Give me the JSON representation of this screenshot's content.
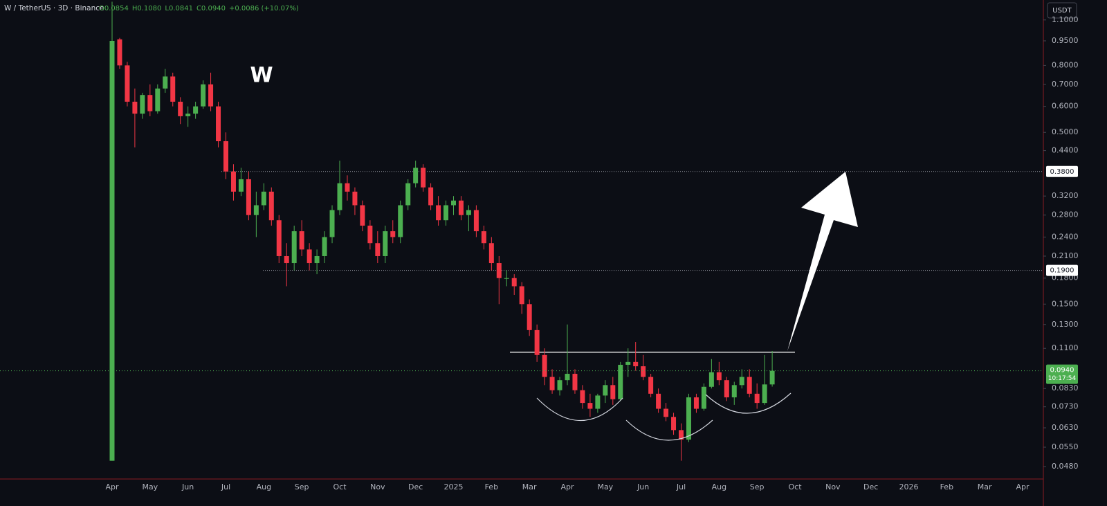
{
  "chart_data": {
    "type": "candlestick",
    "title": "W / TetherUS · 3D · Binance",
    "ohlc_header": [
      "O0.0854",
      "H0.1080",
      "L0.0841",
      "C0.0940",
      "+0.0086 (+10.07%)"
    ],
    "currency": "USDT",
    "annotation": "W",
    "up_color": "#4caf50",
    "down_color": "#f23645",
    "log_scale": true,
    "grid": false,
    "ylim": [
      0.044,
      1.265
    ],
    "yticks": [
      {
        "value": 1.1,
        "label": "1.1000"
      },
      {
        "value": 0.95,
        "label": "0.9500"
      },
      {
        "value": 0.8,
        "label": "0.8000"
      },
      {
        "value": 0.7,
        "label": "0.7000"
      },
      {
        "value": 0.6,
        "label": "0.6000"
      },
      {
        "value": 0.5,
        "label": "0.5000"
      },
      {
        "value": 0.44,
        "label": "0.4400"
      },
      {
        "value": 0.32,
        "label": "0.3200"
      },
      {
        "value": 0.28,
        "label": "0.2800"
      },
      {
        "value": 0.24,
        "label": "0.2400"
      },
      {
        "value": 0.21,
        "label": "0.2100"
      },
      {
        "value": 0.18,
        "label": "0.1800"
      },
      {
        "value": 0.15,
        "label": "0.1500"
      },
      {
        "value": 0.13,
        "label": "0.1300"
      },
      {
        "value": 0.11,
        "label": "0.1100"
      },
      {
        "value": 0.083,
        "label": "0.0830"
      },
      {
        "value": 0.073,
        "label": "0.0730"
      },
      {
        "value": 0.063,
        "label": "0.0630"
      },
      {
        "value": 0.055,
        "label": "0.0550"
      },
      {
        "value": 0.048,
        "label": "0.0480"
      }
    ],
    "levels": [
      {
        "value": 0.38,
        "label": "0.3800"
      },
      {
        "value": 0.19,
        "label": "0.1900"
      }
    ],
    "neckline": 0.107,
    "last_price": {
      "value": 0.094,
      "label": "0.0940"
    },
    "countdown": "10:17:54",
    "categories": [
      "Apr",
      null,
      null,
      null,
      null,
      "May",
      null,
      null,
      null,
      null,
      "Jun",
      null,
      null,
      null,
      null,
      "Jul",
      null,
      null,
      null,
      null,
      "Aug",
      null,
      null,
      null,
      null,
      "Sep",
      null,
      null,
      null,
      null,
      "Oct",
      null,
      null,
      null,
      null,
      "Nov",
      null,
      null,
      null,
      null,
      "Dec",
      null,
      null,
      null,
      null,
      "2025",
      null,
      null,
      null,
      null,
      "Feb",
      null,
      null,
      null,
      null,
      "Mar",
      null,
      null,
      null,
      null,
      "Apr",
      null,
      null,
      null,
      null,
      "May",
      null,
      null,
      null,
      null,
      "Jun",
      null,
      null,
      null,
      null,
      "Jul",
      null,
      null,
      null,
      null,
      "Aug",
      null,
      null,
      null,
      null,
      "Sep",
      null,
      null,
      null,
      null,
      "Oct",
      null,
      null,
      null,
      null,
      "Nov",
      null,
      null,
      null,
      null,
      "Dec",
      null,
      null,
      null,
      null,
      "2026",
      null,
      null,
      null,
      null,
      "Feb",
      null,
      null,
      null,
      null,
      "Mar",
      null,
      null,
      null,
      null,
      "Apr"
    ],
    "open": [
      0.05,
      0.96,
      0.8,
      0.62,
      0.57,
      0.65,
      0.58,
      0.68,
      0.74,
      0.62,
      0.56,
      0.57,
      0.6,
      0.7,
      0.6,
      0.47,
      0.38,
      0.33,
      0.36,
      0.28,
      0.3,
      0.33,
      0.27,
      0.21,
      0.2,
      0.25,
      0.22,
      0.2,
      0.21,
      0.24,
      0.29,
      0.35,
      0.33,
      0.3,
      0.26,
      0.23,
      0.21,
      0.25,
      0.24,
      0.3,
      0.35,
      0.39,
      0.34,
      0.3,
      0.27,
      0.3,
      0.31,
      0.28,
      0.29,
      0.25,
      0.23,
      0.2,
      0.18,
      0.18,
      0.17,
      0.15,
      0.125,
      0.105,
      0.09,
      0.082,
      0.088,
      0.092,
      0.082,
      0.075,
      0.072,
      0.079,
      0.085,
      0.077,
      0.098,
      0.1,
      0.097,
      0.09,
      0.08,
      0.072,
      0.068,
      0.062,
      0.058,
      0.078,
      0.072,
      0.084,
      0.093,
      0.088,
      0.078,
      0.085,
      0.09,
      0.08,
      0.075,
      0.0854,
      null,
      null,
      null,
      null,
      null,
      null,
      null,
      null,
      null,
      null,
      null,
      null,
      null,
      null,
      null,
      null,
      null,
      null,
      null,
      null,
      null,
      null,
      null,
      null,
      null,
      null,
      null,
      null,
      null,
      null,
      null,
      null,
      null
    ],
    "high": [
      1.25,
      0.97,
      0.82,
      0.68,
      0.66,
      0.7,
      0.7,
      0.78,
      0.76,
      0.64,
      0.6,
      0.62,
      0.72,
      0.76,
      0.62,
      0.5,
      0.4,
      0.39,
      0.38,
      0.33,
      0.35,
      0.34,
      0.28,
      0.23,
      0.26,
      0.27,
      0.23,
      0.22,
      0.25,
      0.3,
      0.41,
      0.37,
      0.34,
      0.31,
      0.27,
      0.25,
      0.26,
      0.27,
      0.31,
      0.36,
      0.41,
      0.4,
      0.35,
      0.32,
      0.31,
      0.32,
      0.32,
      0.3,
      0.3,
      0.26,
      0.24,
      0.21,
      0.19,
      0.185,
      0.175,
      0.155,
      0.13,
      0.11,
      0.095,
      0.09,
      0.13,
      0.095,
      0.085,
      0.08,
      0.08,
      0.088,
      0.09,
      0.1,
      0.11,
      0.115,
      0.105,
      0.092,
      0.083,
      0.075,
      0.07,
      0.065,
      0.08,
      0.08,
      0.086,
      0.102,
      0.1,
      0.09,
      0.087,
      0.095,
      0.095,
      0.086,
      0.105,
      0.108,
      null,
      null,
      null,
      null,
      null,
      null,
      null,
      null,
      null,
      null,
      null,
      null,
      null,
      null,
      null,
      null,
      null,
      null,
      null,
      null,
      null,
      null,
      null,
      null,
      null,
      null,
      null,
      null,
      null,
      null,
      null,
      null,
      null
    ],
    "low": [
      0.05,
      0.78,
      0.6,
      0.45,
      0.55,
      0.56,
      0.57,
      0.66,
      0.6,
      0.53,
      0.52,
      0.55,
      0.59,
      0.58,
      0.45,
      0.36,
      0.31,
      0.32,
      0.27,
      0.24,
      0.29,
      0.26,
      0.2,
      0.17,
      0.19,
      0.21,
      0.19,
      0.185,
      0.2,
      0.23,
      0.28,
      0.31,
      0.28,
      0.25,
      0.22,
      0.2,
      0.2,
      0.23,
      0.23,
      0.29,
      0.34,
      0.33,
      0.29,
      0.26,
      0.26,
      0.28,
      0.27,
      0.25,
      0.24,
      0.22,
      0.19,
      0.15,
      0.17,
      0.16,
      0.14,
      0.12,
      0.1,
      0.085,
      0.08,
      0.079,
      0.085,
      0.08,
      0.072,
      0.068,
      0.07,
      0.075,
      0.074,
      0.076,
      0.09,
      0.094,
      0.088,
      0.078,
      0.07,
      0.066,
      0.06,
      0.05,
      0.057,
      0.07,
      0.071,
      0.083,
      0.085,
      0.076,
      0.074,
      0.083,
      0.078,
      0.072,
      0.074,
      0.0841,
      null,
      null,
      null,
      null,
      null,
      null,
      null,
      null,
      null,
      null,
      null,
      null,
      null,
      null,
      null,
      null,
      null,
      null,
      null,
      null,
      null,
      null,
      null,
      null,
      null,
      null,
      null,
      null,
      null,
      null,
      null,
      null,
      null
    ],
    "close": [
      0.95,
      0.8,
      0.62,
      0.57,
      0.65,
      0.58,
      0.68,
      0.74,
      0.62,
      0.56,
      0.57,
      0.6,
      0.7,
      0.6,
      0.47,
      0.38,
      0.33,
      0.36,
      0.28,
      0.3,
      0.33,
      0.27,
      0.21,
      0.2,
      0.25,
      0.22,
      0.2,
      0.21,
      0.24,
      0.29,
      0.35,
      0.33,
      0.3,
      0.26,
      0.23,
      0.21,
      0.25,
      0.24,
      0.3,
      0.35,
      0.39,
      0.34,
      0.3,
      0.27,
      0.3,
      0.31,
      0.28,
      0.29,
      0.25,
      0.23,
      0.2,
      0.18,
      0.18,
      0.17,
      0.15,
      0.125,
      0.105,
      0.09,
      0.082,
      0.088,
      0.092,
      0.082,
      0.075,
      0.072,
      0.079,
      0.085,
      0.077,
      0.098,
      0.1,
      0.097,
      0.09,
      0.08,
      0.072,
      0.068,
      0.062,
      0.058,
      0.078,
      0.072,
      0.084,
      0.093,
      0.088,
      0.078,
      0.085,
      0.09,
      0.08,
      0.075,
      0.0854,
      0.094,
      null,
      null,
      null,
      null,
      null,
      null,
      null,
      null,
      null,
      null,
      null,
      null,
      null,
      null,
      null,
      null,
      null,
      null,
      null,
      null,
      null,
      null,
      null,
      null,
      null,
      null,
      null,
      null,
      null,
      null,
      null,
      null,
      null
    ]
  }
}
